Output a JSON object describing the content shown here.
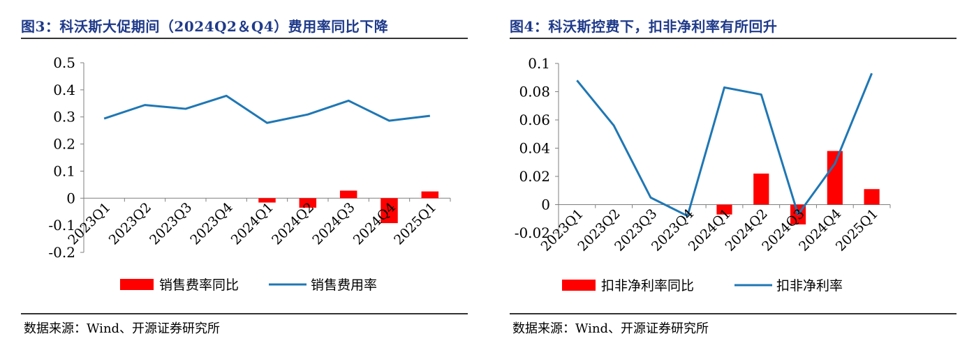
{
  "left": {
    "figure_title": "图3：科沃斯大促期间（2024Q2＆Q4）费用率同比下降",
    "source": "数据来源：Wind、开源证券研究所"
  },
  "right": {
    "figure_title": "图4：科沃斯控费下，扣非净利率有所回升",
    "source": "数据来源：Wind、开源证券研究所"
  },
  "chart_data": [
    {
      "type": "bar+line",
      "title": "",
      "categories": [
        "2023Q1",
        "2023Q2",
        "2023Q3",
        "2023Q4",
        "2024Q1",
        "2024Q2",
        "2024Q3",
        "2024Q4",
        "2025Q1"
      ],
      "series": [
        {
          "name": "销售费率同比",
          "type": "bar",
          "color": "#ff0000",
          "values": [
            null,
            null,
            null,
            null,
            -0.016,
            -0.035,
            0.028,
            -0.092,
            0.025
          ]
        },
        {
          "name": "销售费用率",
          "type": "line",
          "color": "#1f77b4",
          "values": [
            0.294,
            0.344,
            0.33,
            0.378,
            0.278,
            0.309,
            0.36,
            0.286,
            0.304
          ]
        }
      ],
      "ylim": [
        -0.2,
        0.5
      ],
      "yticks": [
        -0.2,
        -0.1,
        0,
        0.1,
        0.2,
        0.3,
        0.4,
        0.5
      ],
      "ytick_labels": [
        "-0.2",
        "-0.1",
        "0",
        "0.1",
        "0.2",
        "0.3",
        "0.4",
        "0.5"
      ],
      "xlabel": "",
      "ylabel": "",
      "grid": false,
      "legend": "bottom"
    },
    {
      "type": "bar+line",
      "title": "",
      "categories": [
        "2023Q1",
        "2023Q2",
        "2023Q3",
        "2023Q4",
        "2024Q1",
        "2024Q2",
        "2024Q3",
        "2024Q4",
        "2025Q1"
      ],
      "series": [
        {
          "name": "扣非净利率同比",
          "type": "bar",
          "color": "#ff0000",
          "values": [
            null,
            null,
            null,
            null,
            -0.007,
            0.022,
            -0.014,
            0.038,
            0.011
          ]
        },
        {
          "name": "扣非净利率",
          "type": "line",
          "color": "#1f77b4",
          "values": [
            0.088,
            0.056,
            0.005,
            -0.008,
            0.083,
            0.078,
            -0.007,
            0.029,
            0.093
          ]
        }
      ],
      "ylim": [
        -0.02,
        0.1
      ],
      "yticks": [
        -0.02,
        0,
        0.02,
        0.04,
        0.06,
        0.08,
        0.1
      ],
      "ytick_labels": [
        "-0.02",
        "0",
        "0.02",
        "0.04",
        "0.06",
        "0.08",
        "0.1"
      ],
      "xlabel": "",
      "ylabel": "",
      "grid": false,
      "legend": "bottom"
    }
  ]
}
